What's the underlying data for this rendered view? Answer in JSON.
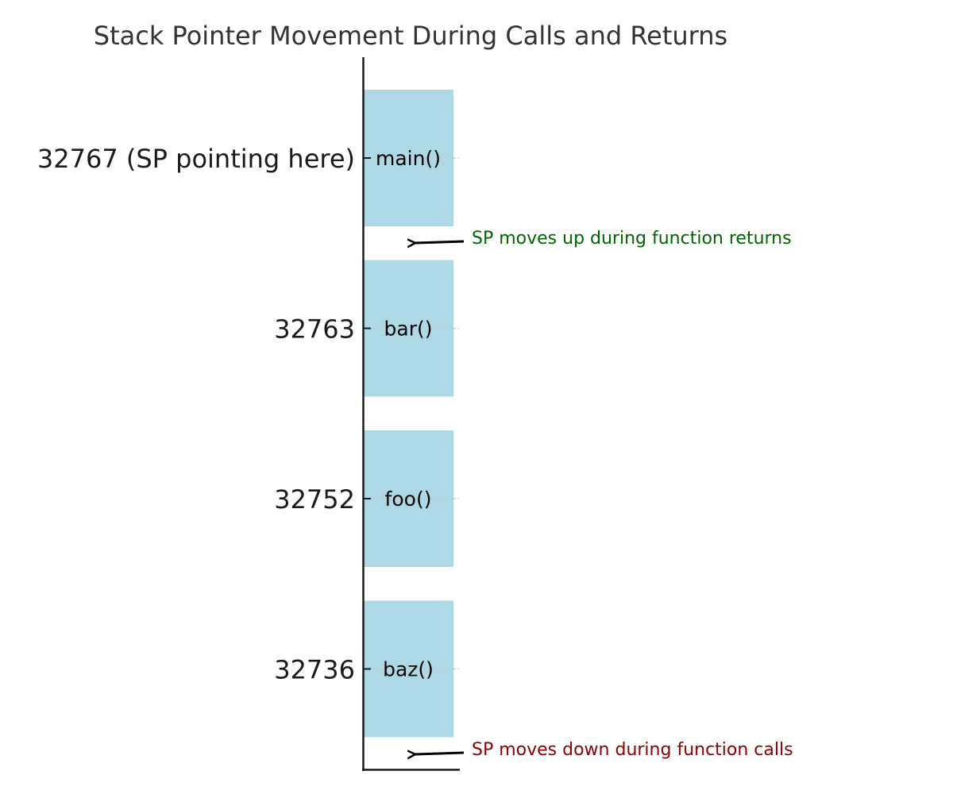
{
  "title": "Stack Pointer Movement During Calls and Returns",
  "frames": [
    {
      "label": "main()",
      "address": "32767 (SP pointing here)"
    },
    {
      "label": "bar()",
      "address": "32763"
    },
    {
      "label": "foo()",
      "address": "32752"
    },
    {
      "label": "baz()",
      "address": "32736"
    }
  ],
  "annotations": {
    "returns": {
      "text": "SP moves up during function returns",
      "color": "#006400"
    },
    "calls": {
      "text": "SP moves down during function calls",
      "color": "#8b0000"
    }
  },
  "colors": {
    "frame_fill": "#add8e6",
    "axis": "#1a1a1a",
    "title": "#333333",
    "grid": "#c8c8c8"
  }
}
